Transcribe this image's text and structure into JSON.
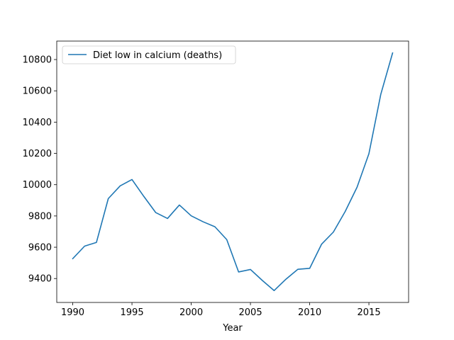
{
  "chart_data": {
    "type": "line",
    "title": "",
    "xlabel": "Year",
    "ylabel": "",
    "xlim": [
      1988.65,
      2018.35
    ],
    "ylim": [
      9247,
      10918
    ],
    "x_ticks": [
      {
        "value": 1990,
        "label": "1990"
      },
      {
        "value": 1995,
        "label": "1995"
      },
      {
        "value": 2000,
        "label": "2000"
      },
      {
        "value": 2005,
        "label": "2005"
      },
      {
        "value": 2010,
        "label": "2010"
      },
      {
        "value": 2015,
        "label": "2015"
      }
    ],
    "y_ticks": [
      {
        "value": 9400,
        "label": "9400"
      },
      {
        "value": 9600,
        "label": "9600"
      },
      {
        "value": 9800,
        "label": "9800"
      },
      {
        "value": 10000,
        "label": "10000"
      },
      {
        "value": 10200,
        "label": "10200"
      },
      {
        "value": 10400,
        "label": "10400"
      },
      {
        "value": 10600,
        "label": "10600"
      },
      {
        "value": 10800,
        "label": "10800"
      }
    ],
    "grid": false,
    "legend_position": "upper-left",
    "series": [
      {
        "name": "Diet low in calcium (deaths)",
        "color": "#1f77b4",
        "x": [
          1990,
          1991,
          1992,
          1993,
          1994,
          1995,
          1996,
          1997,
          1998,
          1999,
          2000,
          2001,
          2002,
          2003,
          2004,
          2005,
          2006,
          2007,
          2008,
          2009,
          2010,
          2011,
          2012,
          2013,
          2014,
          2015,
          2016,
          2017
        ],
        "y": [
          9527,
          9607,
          9631,
          9911,
          9992,
          10033,
          9925,
          9822,
          9784,
          9870,
          9801,
          9763,
          9731,
          9649,
          9442,
          9458,
          9388,
          9323,
          9396,
          9459,
          9465,
          9619,
          9697,
          9829,
          9984,
          10198,
          10577,
          10842
        ]
      }
    ]
  }
}
